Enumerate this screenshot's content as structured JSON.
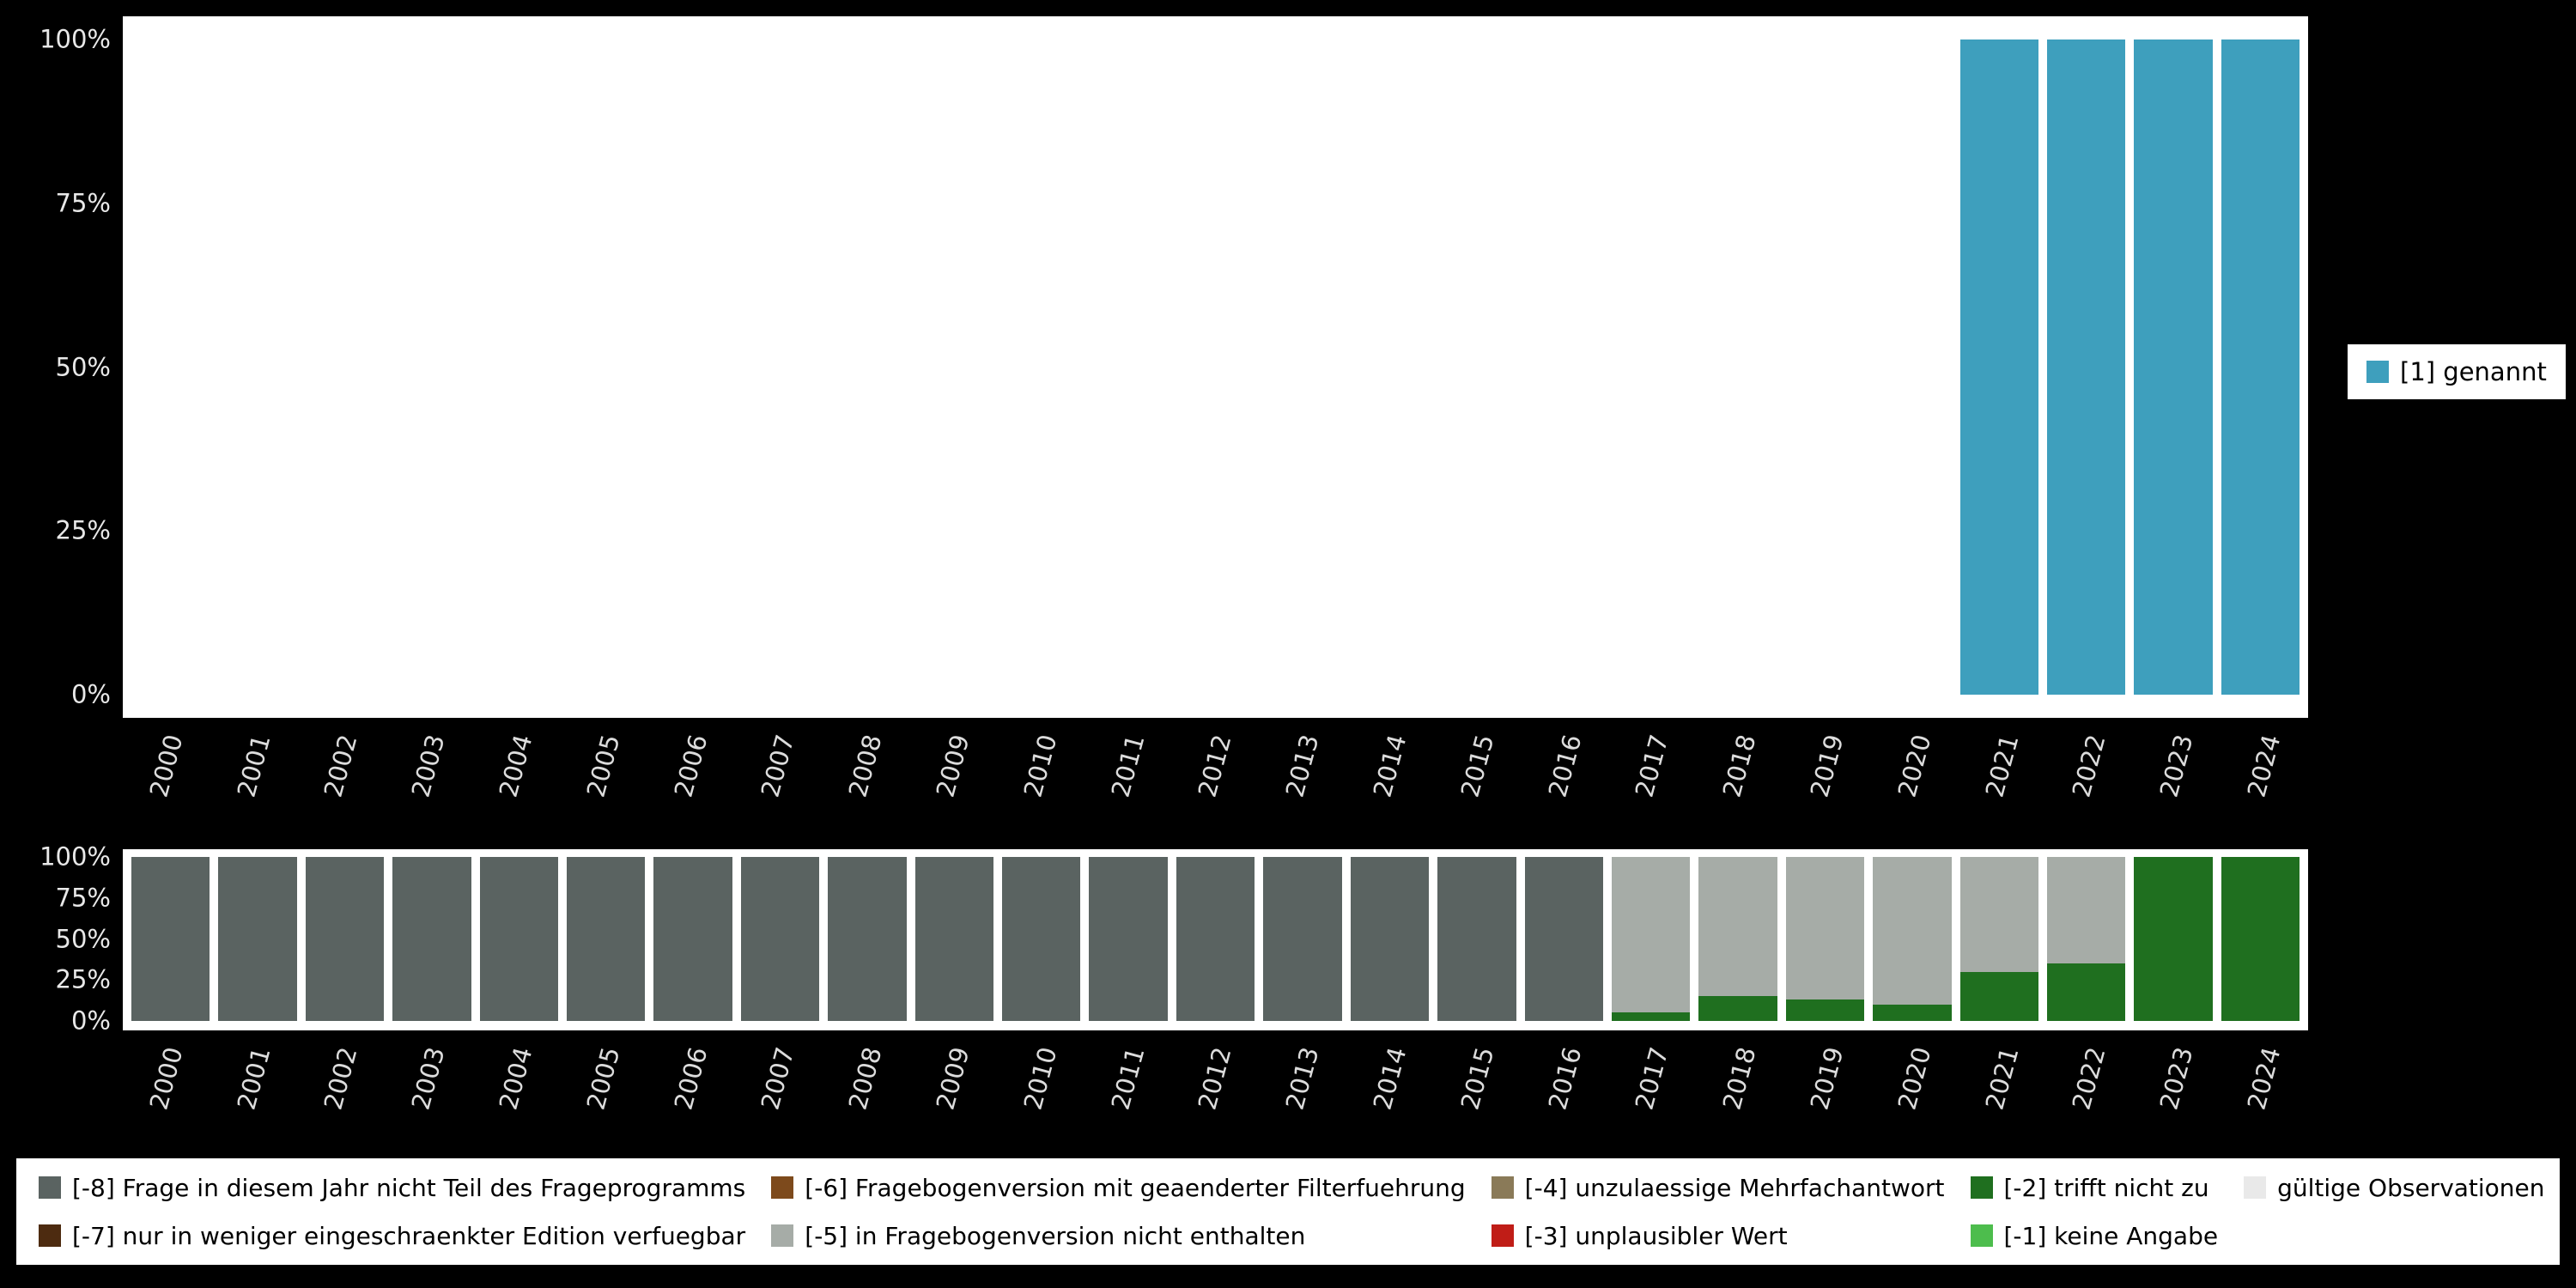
{
  "colors": {
    "background": "#000000",
    "plot_background": "#ffffff",
    "axis_text": "#e8e8e8",
    "legend_background": "#ffffff",
    "genannt_teal": "#3e9fbd",
    "m8_darkgray": "#5a6361",
    "m7_darkbrown": "#4d2b10",
    "m6_brown": "#7d4a1c",
    "m5_gray": "#a6aca7",
    "m4_graybrown": "#8a7a58",
    "m3_red": "#c01d17",
    "m2_darkgreen": "#1f6f1f",
    "m1_lightgreen": "#4dbd4d",
    "valid_lightgray": "#e9e9e9"
  },
  "chart_data": [
    {
      "id": "values-chart",
      "type": "bar",
      "stacked": true,
      "title": "",
      "xlabel": "",
      "ylabel": "",
      "ylim": [
        0,
        100
      ],
      "grid": false,
      "y_ticks": [
        "100%",
        "75%",
        "50%",
        "25%",
        "0%"
      ],
      "categories": [
        "2000",
        "2001",
        "2002",
        "2003",
        "2004",
        "2005",
        "2006",
        "2007",
        "2008",
        "2009",
        "2010",
        "2011",
        "2012",
        "2013",
        "2014",
        "2015",
        "2016",
        "2017",
        "2018",
        "2019",
        "2020",
        "2021",
        "2022",
        "2023",
        "2024"
      ],
      "series": [
        {
          "name": "[1] genannt",
          "color": "#3e9fbd",
          "values": [
            0,
            0,
            0,
            0,
            0,
            0,
            0,
            0,
            0,
            0,
            0,
            0,
            0,
            0,
            0,
            0,
            0,
            0,
            0,
            0,
            0,
            100,
            100,
            100,
            100
          ]
        }
      ],
      "legend": {
        "position": "right",
        "items": [
          {
            "label": "[1] genannt",
            "color": "#3e9fbd"
          }
        ]
      }
    },
    {
      "id": "missings-chart",
      "type": "bar",
      "stacked": true,
      "title": "",
      "xlabel": "",
      "ylabel": "",
      "ylim": [
        0,
        100
      ],
      "grid": false,
      "y_ticks": [
        "100%",
        "75%",
        "50%",
        "25%",
        "0%"
      ],
      "categories": [
        "2000",
        "2001",
        "2002",
        "2003",
        "2004",
        "2005",
        "2006",
        "2007",
        "2008",
        "2009",
        "2010",
        "2011",
        "2012",
        "2013",
        "2014",
        "2015",
        "2016",
        "2017",
        "2018",
        "2019",
        "2020",
        "2021",
        "2022",
        "2023",
        "2024"
      ],
      "series": [
        {
          "name": "[-8] Frage in diesem Jahr nicht Teil des Frageprogramms",
          "color": "#5a6361",
          "values": [
            100,
            100,
            100,
            100,
            100,
            100,
            100,
            100,
            100,
            100,
            100,
            100,
            100,
            100,
            100,
            100,
            100,
            0,
            0,
            0,
            0,
            0,
            0,
            0,
            0
          ]
        },
        {
          "name": "[-2] trifft nicht zu",
          "color": "#1f6f1f",
          "values": [
            0,
            0,
            0,
            0,
            0,
            0,
            0,
            0,
            0,
            0,
            0,
            0,
            0,
            0,
            0,
            0,
            0,
            5,
            15,
            13,
            10,
            30,
            35,
            100,
            100
          ]
        },
        {
          "name": "[-5] in Fragebogenversion nicht enthalten",
          "color": "#a6aca7",
          "values": [
            0,
            0,
            0,
            0,
            0,
            0,
            0,
            0,
            0,
            0,
            0,
            0,
            0,
            0,
            0,
            0,
            0,
            95,
            85,
            87,
            90,
            70,
            65,
            0,
            0
          ]
        }
      ],
      "legend": {
        "position": "bottom"
      }
    }
  ],
  "legend_bottom": {
    "items": [
      {
        "label": "[-8] Frage in diesem Jahr nicht Teil des Frageprogramms",
        "color": "#5a6361"
      },
      {
        "label": "[-7] nur in weniger eingeschraenkter Edition verfuegbar",
        "color": "#4d2b10"
      },
      {
        "label": "[-6] Fragebogenversion mit geaenderter Filterfuehrung",
        "color": "#7d4a1c"
      },
      {
        "label": "[-5] in Fragebogenversion nicht enthalten",
        "color": "#a6aca7"
      },
      {
        "label": "[-4] unzulaessige Mehrfachantwort",
        "color": "#8a7a58"
      },
      {
        "label": "[-3] unplausibler Wert",
        "color": "#c01d17"
      },
      {
        "label": "[-2] trifft nicht zu",
        "color": "#1f6f1f"
      },
      {
        "label": "[-1] keine Angabe",
        "color": "#4dbd4d"
      },
      {
        "label": "gültige Observationen",
        "color": "#e9e9e9"
      }
    ]
  }
}
